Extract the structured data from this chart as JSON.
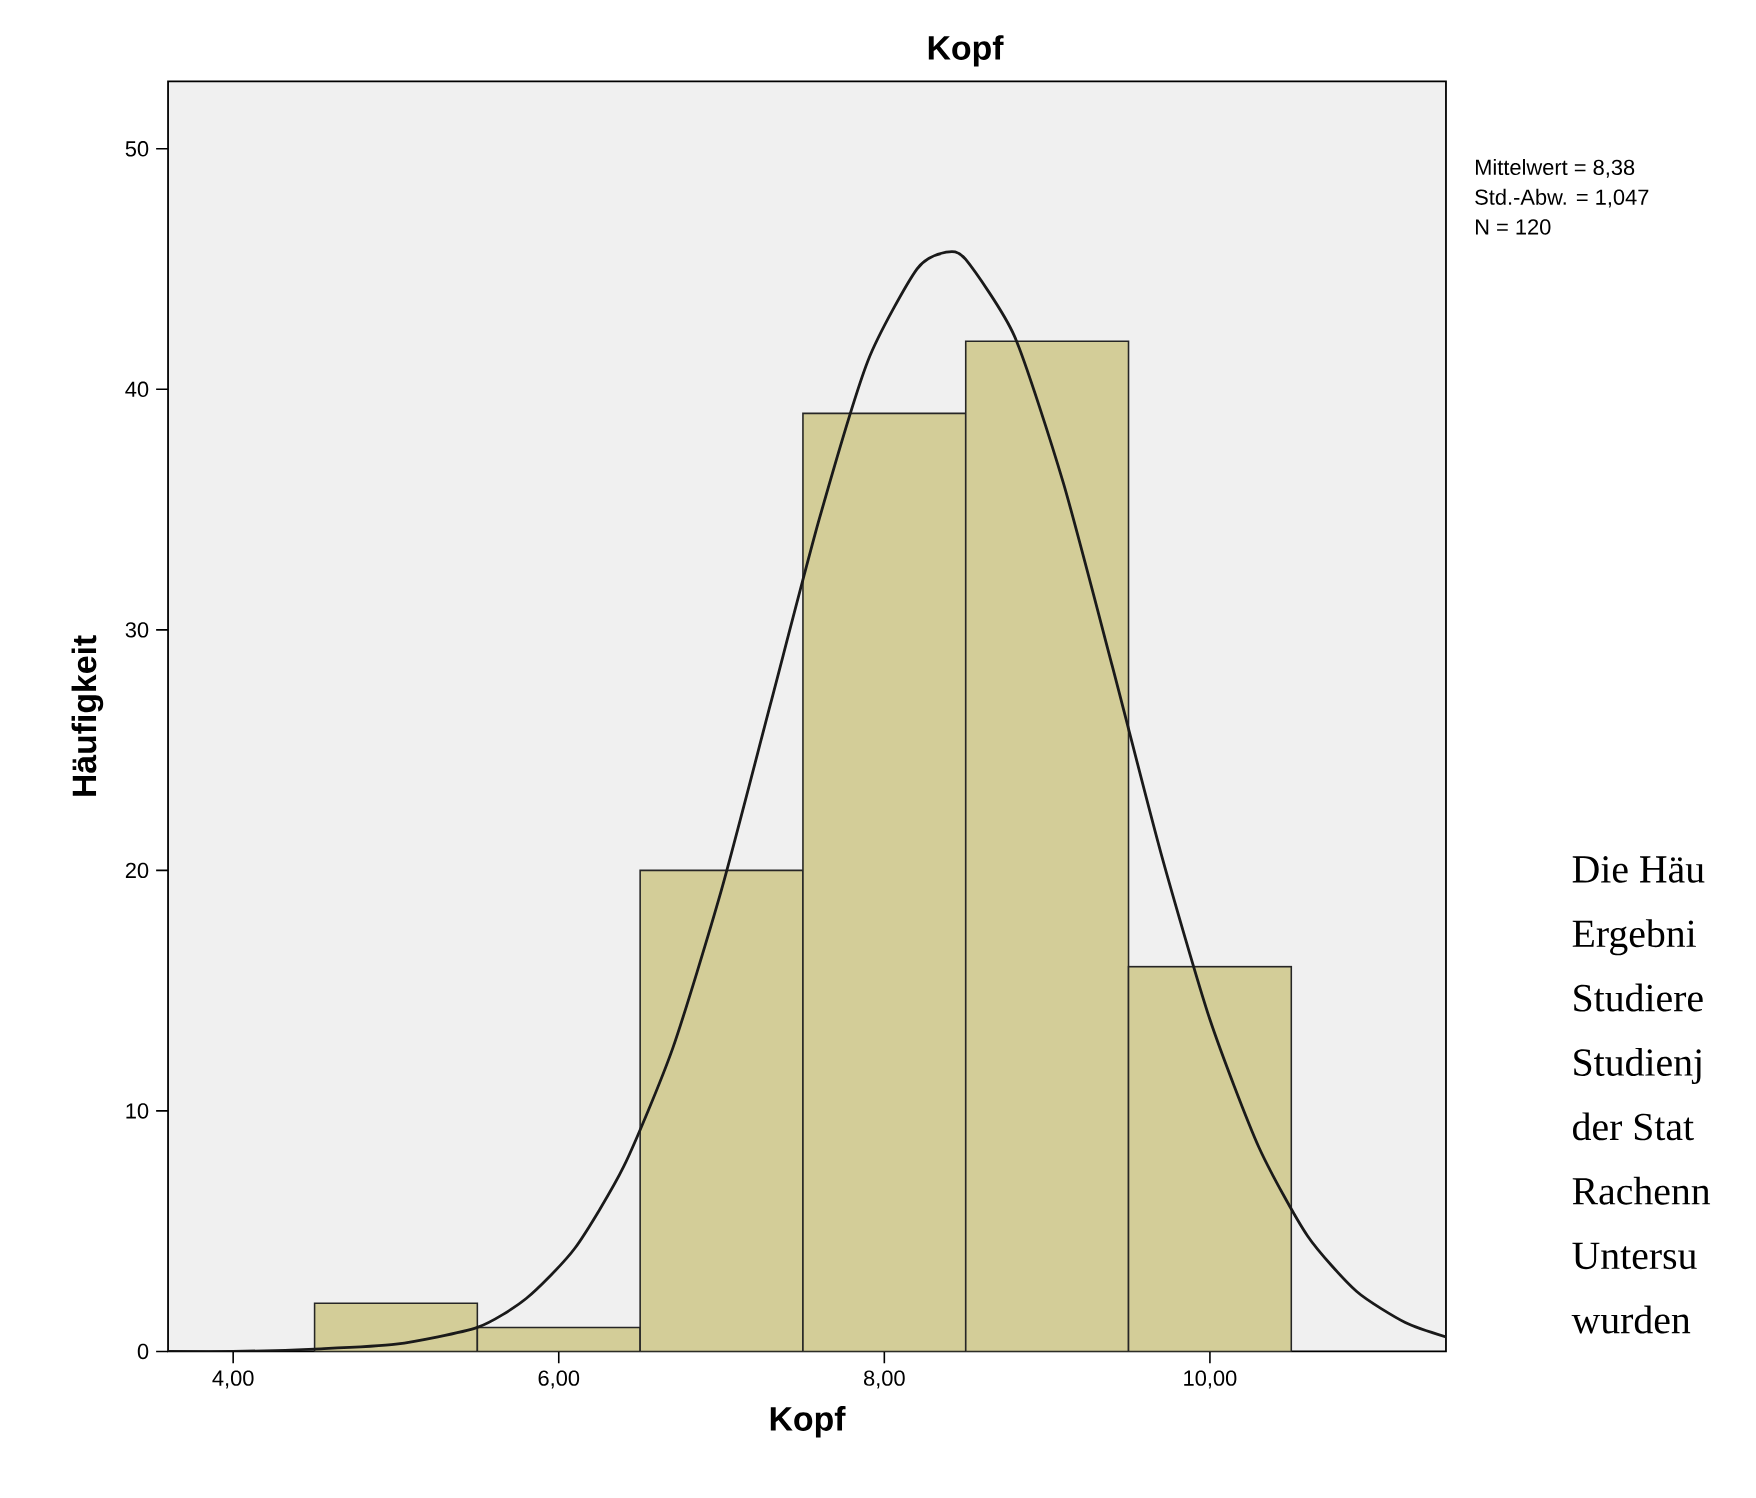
{
  "chart_data": {
    "type": "histogram",
    "title": "Kopf",
    "xlabel": "Kopf",
    "ylabel": "Häufigkeit",
    "bins": [
      4.5,
      5.5,
      6.5,
      7.5,
      8.5,
      9.5,
      10.5
    ],
    "values": [
      2,
      1,
      20,
      39,
      42,
      16
    ],
    "color": "#d3cd98",
    "series": [
      {
        "type": "line",
        "color": "#1a1a1a",
        "x": [
          3.6,
          4.0,
          4.5,
          5.0,
          5.5,
          5.8,
          6.1,
          6.4,
          6.7,
          7.0,
          7.3,
          7.6,
          7.9,
          8.2,
          8.38,
          8.5,
          8.8,
          9.1,
          9.4,
          9.7,
          10.0,
          10.3,
          10.6,
          10.9,
          11.2,
          11.45
        ],
        "values": [
          0,
          0,
          0.1,
          0.3,
          1,
          2.2,
          4.3,
          7.7,
          12.6,
          19.2,
          26.9,
          34.6,
          41.2,
          45,
          45.7,
          45.4,
          42.2,
          36.1,
          28.5,
          20.7,
          13.8,
          8.5,
          4.8,
          2.5,
          1.2,
          0.6
        ]
      }
    ],
    "xlim": [
      3.6,
      11.45
    ],
    "ylim": [
      0,
      52.8
    ],
    "xticks": [
      {
        "value": 4,
        "label": "4,00"
      },
      {
        "value": 6,
        "label": "6,00"
      },
      {
        "value": 8,
        "label": "8,00"
      },
      {
        "value": 10,
        "label": "10,00"
      }
    ],
    "yticks": [
      0,
      10,
      20,
      30,
      40,
      50
    ],
    "grid": false,
    "annotations": [
      "Mittelwert = 8,38",
      "Std.-Abw. =  1,047",
      "N = 120",
      "Die Häu",
      "Ergebni",
      "Studiere",
      "Studienj",
      "der Stat",
      "Rachenn",
      "Untersu",
      "wurden"
    ]
  }
}
